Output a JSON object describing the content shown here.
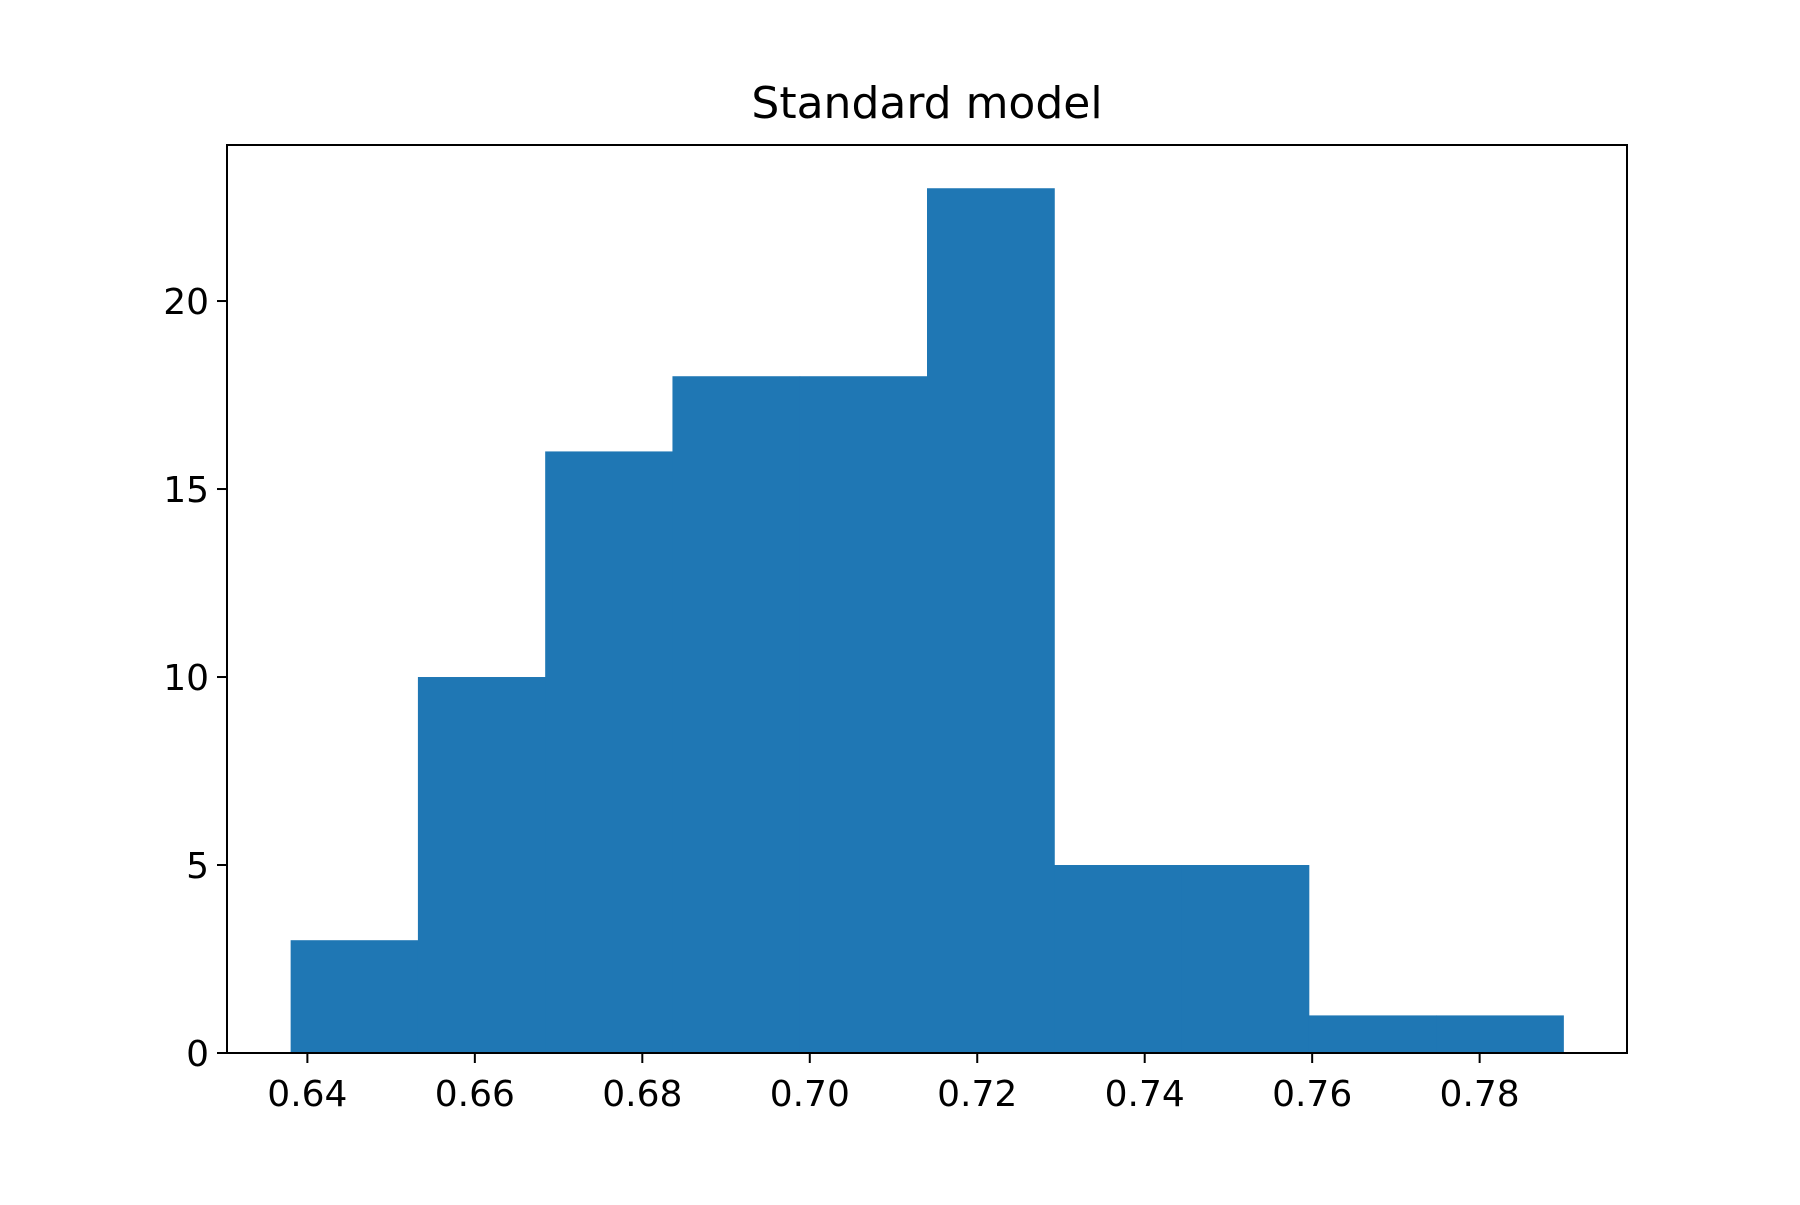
{
  "chart_data": {
    "type": "bar",
    "title": "Standard model",
    "xlabel": "",
    "ylabel": "",
    "bin_edges": [
      0.638,
      0.6532,
      0.6684,
      0.6836,
      0.6988,
      0.714,
      0.7292,
      0.7444,
      0.7596,
      0.7748,
      0.79
    ],
    "values": [
      3,
      10,
      16,
      18,
      18,
      23,
      5,
      5,
      1,
      1
    ],
    "xlim": [
      0.6304,
      0.7976
    ],
    "ylim": [
      0,
      24.15
    ],
    "xticks": [
      0.64,
      0.66,
      0.68,
      0.7,
      0.72,
      0.74,
      0.76,
      0.78
    ],
    "xtick_labels": [
      "0.64",
      "0.66",
      "0.68",
      "0.70",
      "0.72",
      "0.74",
      "0.76",
      "0.78"
    ],
    "yticks": [
      0,
      5,
      10,
      15,
      20
    ],
    "ytick_labels": [
      "0",
      "5",
      "10",
      "15",
      "20"
    ],
    "bar_color": "#1f77b4",
    "grid": false,
    "legend": "none"
  }
}
